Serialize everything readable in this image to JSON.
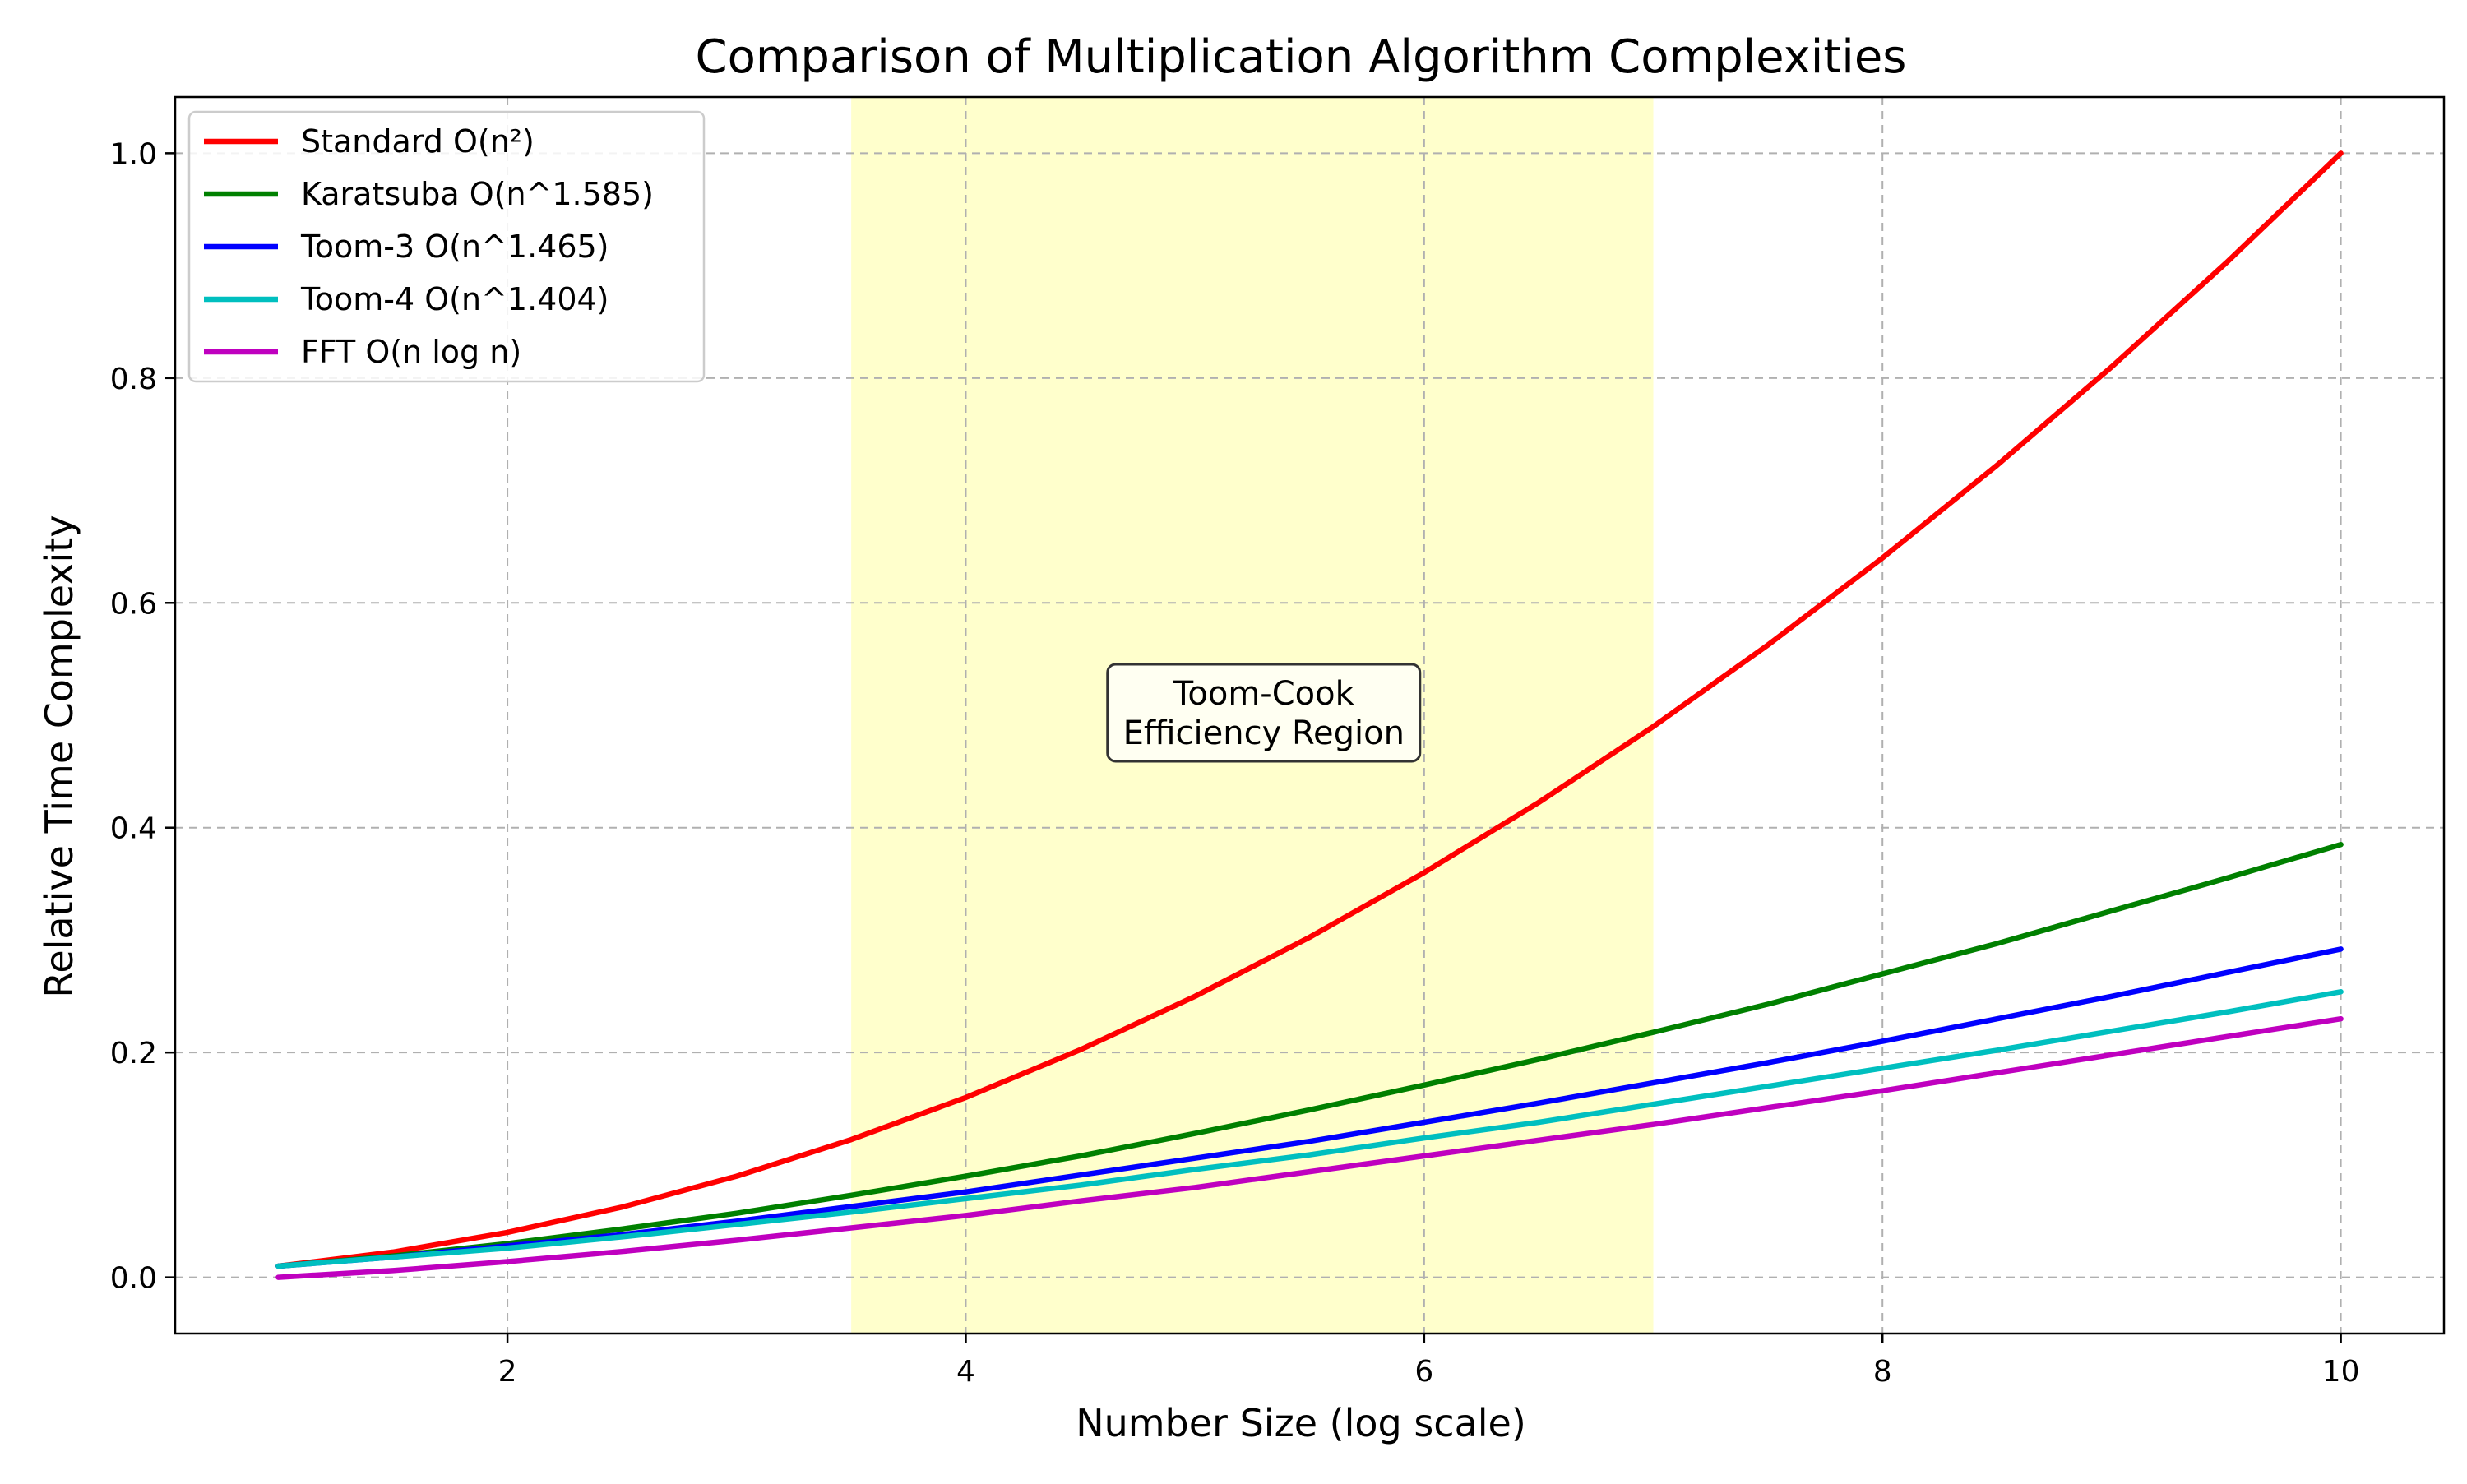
{
  "chart_data": {
    "type": "line",
    "title": "Comparison of Multiplication Algorithm Complexities",
    "xlabel": "Number Size (log scale)",
    "ylabel": "Relative Time Complexity",
    "xlim": [
      0.55,
      10.45
    ],
    "ylim": [
      -0.05,
      1.05
    ],
    "x_ticks": [
      2,
      4,
      6,
      8,
      10
    ],
    "x_tick_labels": [
      "2",
      "4",
      "6",
      "8",
      "10"
    ],
    "y_ticks": [
      0.0,
      0.2,
      0.4,
      0.6,
      0.8,
      1.0
    ],
    "y_tick_labels": [
      "0.0",
      "0.2",
      "0.4",
      "0.6",
      "0.8",
      "1.0"
    ],
    "grid": true,
    "legend_position": "top-left",
    "x": [
      1,
      1.5,
      2,
      2.5,
      3,
      3.5,
      4,
      4.5,
      5,
      5.5,
      6,
      6.5,
      7,
      7.5,
      8,
      8.5,
      9,
      9.5,
      10
    ],
    "series": [
      {
        "name": "Standard O(n²)",
        "color": "#ff0000",
        "values": [
          0.01,
          0.0225,
          0.04,
          0.0625,
          0.09,
          0.1225,
          0.16,
          0.2025,
          0.25,
          0.3025,
          0.36,
          0.4225,
          0.49,
          0.5625,
          0.64,
          0.7225,
          0.81,
          0.9025,
          1.0
        ]
      },
      {
        "name": "Karatsuba O(n^1.585)",
        "color": "#008000",
        "values": [
          0.01,
          0.019,
          0.03,
          0.043,
          0.057,
          0.073,
          0.09,
          0.108,
          0.128,
          0.149,
          0.171,
          0.194,
          0.218,
          0.243,
          0.27,
          0.297,
          0.326,
          0.355,
          0.385
        ]
      },
      {
        "name": "Toom-3 O(n^1.465)",
        "color": "#0000ff",
        "values": [
          0.01,
          0.018,
          0.028,
          0.038,
          0.05,
          0.063,
          0.076,
          0.091,
          0.106,
          0.121,
          0.138,
          0.155,
          0.173,
          0.191,
          0.21,
          0.23,
          0.25,
          0.271,
          0.292
        ]
      },
      {
        "name": "Toom-4 O(n^1.404)",
        "color": "#00bfbf",
        "values": [
          0.01,
          0.018,
          0.026,
          0.036,
          0.047,
          0.058,
          0.07,
          0.082,
          0.096,
          0.109,
          0.124,
          0.138,
          0.154,
          0.17,
          0.186,
          0.202,
          0.219,
          0.236,
          0.254
        ]
      },
      {
        "name": "FFT O(n log n)",
        "color": "#bf00bf",
        "values": [
          0.0,
          0.006,
          0.014,
          0.023,
          0.033,
          0.044,
          0.055,
          0.068,
          0.08,
          0.094,
          0.108,
          0.122,
          0.136,
          0.151,
          0.166,
          0.182,
          0.198,
          0.214,
          0.23
        ]
      }
    ],
    "shaded_region": {
      "x_start": 3.5,
      "x_end": 7.0,
      "color": "#ffffcc"
    },
    "annotation": {
      "lines": [
        "Toom-Cook",
        "Efficiency Region"
      ],
      "x": 5.3,
      "y": 0.5
    }
  }
}
